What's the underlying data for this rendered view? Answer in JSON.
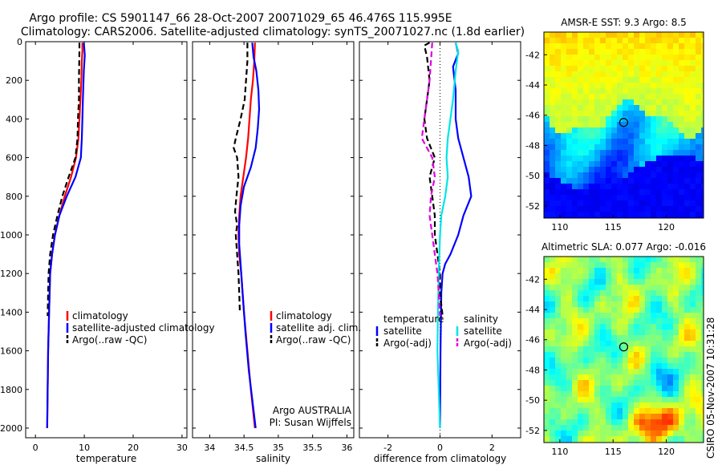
{
  "header": {
    "line1": "Argo profile: CS 5901147_66 28-Oct-2007 20071029_65 46.476S 115.995E",
    "line2": "Climatology: CARS2006. Satellite-adjusted climatology: synTS_20071027.nc (1.8d earlier)"
  },
  "footer": {
    "stamp": "CSIRO 05-Nov-2007 10:31:28"
  },
  "colors": {
    "climatology": "#ff0000",
    "satellite": "#0000ff",
    "argo": "#000000",
    "sat_diff_salinity": "#00e5e5",
    "argo_diff_salinity": "#e000e0"
  },
  "chart_data": [
    {
      "type": "line",
      "xlabel": "temperature",
      "ylabel": "",
      "xlim": [
        -2,
        31
      ],
      "ylim": [
        2050,
        0
      ],
      "xticks": [
        0,
        10,
        20,
        30
      ],
      "yticks": [
        0,
        200,
        400,
        600,
        800,
        1000,
        1200,
        1400,
        1600,
        1800,
        2000
      ],
      "legend": {
        "placement": "lower-right",
        "entries": [
          "climatology",
          "satellite-adjusted climatology",
          "Argo(..raw -QC)"
        ]
      },
      "series": [
        {
          "name": "climatology",
          "color": "#ff0000",
          "dash": false,
          "points": [
            [
              9.6,
              5
            ],
            [
              9.6,
              50
            ],
            [
              9.5,
              100
            ],
            [
              9.4,
              200
            ],
            [
              9.2,
              300
            ],
            [
              9.0,
              400
            ],
            [
              8.8,
              500
            ],
            [
              8.3,
              600
            ],
            [
              7.3,
              700
            ],
            [
              6.0,
              800
            ],
            [
              4.9,
              900
            ],
            [
              4.0,
              1000
            ],
            [
              3.4,
              1100
            ],
            [
              3.0,
              1200
            ],
            [
              2.8,
              1400
            ],
            [
              2.6,
              1600
            ],
            [
              2.5,
              1800
            ],
            [
              2.4,
              2000
            ]
          ]
        },
        {
          "name": "satellite-adjusted climatology",
          "color": "#0000ff",
          "dash": false,
          "points": [
            [
              9.9,
              5
            ],
            [
              10.1,
              70
            ],
            [
              9.9,
              150
            ],
            [
              9.7,
              300
            ],
            [
              9.6,
              400
            ],
            [
              9.5,
              500
            ],
            [
              9.3,
              600
            ],
            [
              8.2,
              700
            ],
            [
              6.4,
              800
            ],
            [
              4.9,
              900
            ],
            [
              4.0,
              1000
            ],
            [
              3.4,
              1100
            ],
            [
              3.0,
              1200
            ],
            [
              2.8,
              1400
            ],
            [
              2.6,
              1600
            ],
            [
              2.5,
              1800
            ],
            [
              2.4,
              2000
            ]
          ]
        },
        {
          "name": "Argo(..raw -QC)",
          "color": "#000000",
          "dash": true,
          "points": [
            [
              9.0,
              5
            ],
            [
              9.0,
              50
            ],
            [
              8.9,
              200
            ],
            [
              8.9,
              300
            ],
            [
              8.7,
              400
            ],
            [
              8.6,
              500
            ],
            [
              8.2,
              600
            ],
            [
              6.8,
              700
            ],
            [
              5.5,
              800
            ],
            [
              4.5,
              900
            ],
            [
              3.6,
              1000
            ],
            [
              3.0,
              1100
            ],
            [
              2.7,
              1200
            ],
            [
              2.6,
              1300
            ],
            [
              2.5,
              1420
            ]
          ]
        }
      ]
    },
    {
      "type": "line",
      "xlabel": "salinity",
      "ylabel": "",
      "xlim": [
        33.75,
        36.1
      ],
      "ylim": [
        2050,
        0
      ],
      "xticks": [
        34,
        34.5,
        35,
        35.5,
        36
      ],
      "xticklabels": [
        "34",
        "34.5",
        "35",
        "35.5",
        "36"
      ],
      "legend": {
        "placement": "lower-right",
        "entries": [
          "climatology",
          "satellite adj. clim.",
          "Argo(..raw -QC)"
        ]
      },
      "annotation": [
        "Argo AUSTRALIA",
        "PI: Susan Wijffels"
      ],
      "series": [
        {
          "name": "climatology",
          "color": "#ff0000",
          "dash": false,
          "points": [
            [
              34.66,
              5
            ],
            [
              34.65,
              100
            ],
            [
              34.63,
              200
            ],
            [
              34.6,
              300
            ],
            [
              34.58,
              400
            ],
            [
              34.56,
              500
            ],
            [
              34.53,
              600
            ],
            [
              34.49,
              700
            ],
            [
              34.45,
              800
            ],
            [
              34.43,
              900
            ],
            [
              34.42,
              1000
            ],
            [
              34.43,
              1100
            ],
            [
              34.46,
              1200
            ],
            [
              34.5,
              1400
            ],
            [
              34.55,
              1600
            ],
            [
              34.6,
              1800
            ],
            [
              34.66,
              2000
            ]
          ]
        },
        {
          "name": "satellite adj. clim.",
          "color": "#0000ff",
          "dash": false,
          "points": [
            [
              34.62,
              5
            ],
            [
              34.64,
              80
            ],
            [
              34.68,
              150
            ],
            [
              34.71,
              250
            ],
            [
              34.72,
              350
            ],
            [
              34.7,
              450
            ],
            [
              34.67,
              550
            ],
            [
              34.6,
              650
            ],
            [
              34.5,
              750
            ],
            [
              34.45,
              850
            ],
            [
              34.43,
              950
            ],
            [
              34.43,
              1050
            ],
            [
              34.45,
              1150
            ],
            [
              34.48,
              1300
            ],
            [
              34.52,
              1500
            ],
            [
              34.57,
              1700
            ],
            [
              34.62,
              1850
            ],
            [
              34.67,
              2000
            ]
          ]
        },
        {
          "name": "Argo(..raw -QC)",
          "color": "#000000",
          "dash": true,
          "points": [
            [
              34.55,
              5
            ],
            [
              34.55,
              100
            ],
            [
              34.53,
              200
            ],
            [
              34.51,
              300
            ],
            [
              34.45,
              400
            ],
            [
              34.38,
              500
            ],
            [
              34.35,
              550
            ],
            [
              34.4,
              600
            ],
            [
              34.42,
              700
            ],
            [
              34.39,
              800
            ],
            [
              34.37,
              880
            ],
            [
              34.4,
              950
            ],
            [
              34.38,
              1000
            ],
            [
              34.4,
              1100
            ],
            [
              34.42,
              1200
            ],
            [
              34.43,
              1300
            ],
            [
              34.44,
              1400
            ]
          ]
        }
      ]
    },
    {
      "type": "line",
      "xlabel": "difference from climatology",
      "ylabel": "",
      "xlim": [
        -3.1,
        3.1
      ],
      "ylim": [
        2050,
        0
      ],
      "xticks": [
        -2,
        0,
        2
      ],
      "legend": {
        "placement": "lower",
        "groups": [
          {
            "heading": "temperature",
            "entries": [
              "satellite",
              "Argo(-adj)"
            ]
          },
          {
            "heading": "salinity",
            "entries": [
              "satellite",
              "Argo(-adj)"
            ]
          }
        ]
      },
      "series": [
        {
          "name": "temperature satellite",
          "color": "#0000ff",
          "dash": false,
          "points": [
            [
              0.6,
              5
            ],
            [
              0.7,
              60
            ],
            [
              0.5,
              130
            ],
            [
              0.6,
              250
            ],
            [
              0.6,
              400
            ],
            [
              0.7,
              500
            ],
            [
              0.9,
              600
            ],
            [
              1.1,
              700
            ],
            [
              1.2,
              800
            ],
            [
              0.9,
              900
            ],
            [
              0.7,
              1000
            ],
            [
              0.4,
              1100
            ],
            [
              0.2,
              1150
            ],
            [
              0.1,
              1200
            ],
            [
              0.05,
              1300
            ],
            [
              0.02,
              1600
            ],
            [
              0.0,
              2000
            ]
          ]
        },
        {
          "name": "temperature Argo(-adj)",
          "color": "#000000",
          "dash": true,
          "points": [
            [
              -0.4,
              5
            ],
            [
              -0.6,
              20
            ],
            [
              -0.5,
              80
            ],
            [
              -0.4,
              200
            ],
            [
              -0.5,
              300
            ],
            [
              -0.6,
              400
            ],
            [
              -0.5,
              500
            ],
            [
              -0.2,
              600
            ],
            [
              -0.4,
              700
            ],
            [
              -0.3,
              800
            ],
            [
              -0.2,
              900
            ],
            [
              -0.2,
              1000
            ],
            [
              -0.1,
              1100
            ],
            [
              0.0,
              1200
            ],
            [
              0.0,
              1300
            ],
            [
              0.1,
              1420
            ]
          ]
        },
        {
          "name": "salinity satellite",
          "color": "#00e5e5",
          "dash": false,
          "points": [
            [
              0.6,
              5
            ],
            [
              0.7,
              50
            ],
            [
              0.6,
              150
            ],
            [
              0.5,
              300
            ],
            [
              0.3,
              500
            ],
            [
              0.25,
              600
            ],
            [
              0.3,
              700
            ],
            [
              0.2,
              800
            ],
            [
              0.05,
              900
            ],
            [
              0.0,
              1000
            ],
            [
              -0.05,
              1200
            ],
            [
              -0.08,
              1400
            ],
            [
              -0.1,
              1600
            ],
            [
              -0.05,
              1800
            ],
            [
              0.0,
              2000
            ]
          ]
        },
        {
          "name": "salinity Argo(-adj)",
          "color": "#e000e0",
          "dash": true,
          "points": [
            [
              -0.3,
              5
            ],
            [
              -0.35,
              100
            ],
            [
              -0.4,
              200
            ],
            [
              -0.5,
              300
            ],
            [
              -0.6,
              400
            ],
            [
              -0.7,
              500
            ],
            [
              -0.3,
              600
            ],
            [
              -0.2,
              700
            ],
            [
              -0.35,
              800
            ],
            [
              -0.4,
              900
            ],
            [
              -0.3,
              1000
            ],
            [
              -0.2,
              1100
            ],
            [
              -0.1,
              1200
            ],
            [
              -0.05,
              1300
            ],
            [
              0.0,
              1420
            ]
          ]
        }
      ]
    },
    {
      "type": "heatmap",
      "title": "AMSR-E SST: 9.3 Argo: 8.5",
      "xlim": [
        108.5,
        123.5
      ],
      "ylim": [
        -52.8,
        -40.5
      ],
      "xticks": [
        110,
        115,
        120
      ],
      "yticks": [
        -42,
        -44,
        -46,
        -48,
        -50,
        -52
      ],
      "marker": {
        "x": 115.995,
        "y": -46.476
      },
      "colormap": "jet"
    },
    {
      "type": "heatmap",
      "title": "Altimetric SLA: 0.077 Argo: -0.016",
      "xlim": [
        108.5,
        123.5
      ],
      "ylim": [
        -52.8,
        -40.5
      ],
      "xticks": [
        110,
        115,
        120
      ],
      "yticks": [
        -42,
        -44,
        -46,
        -48,
        -50,
        -52
      ],
      "marker": {
        "x": 115.995,
        "y": -46.476
      },
      "colormap": "jet"
    }
  ]
}
